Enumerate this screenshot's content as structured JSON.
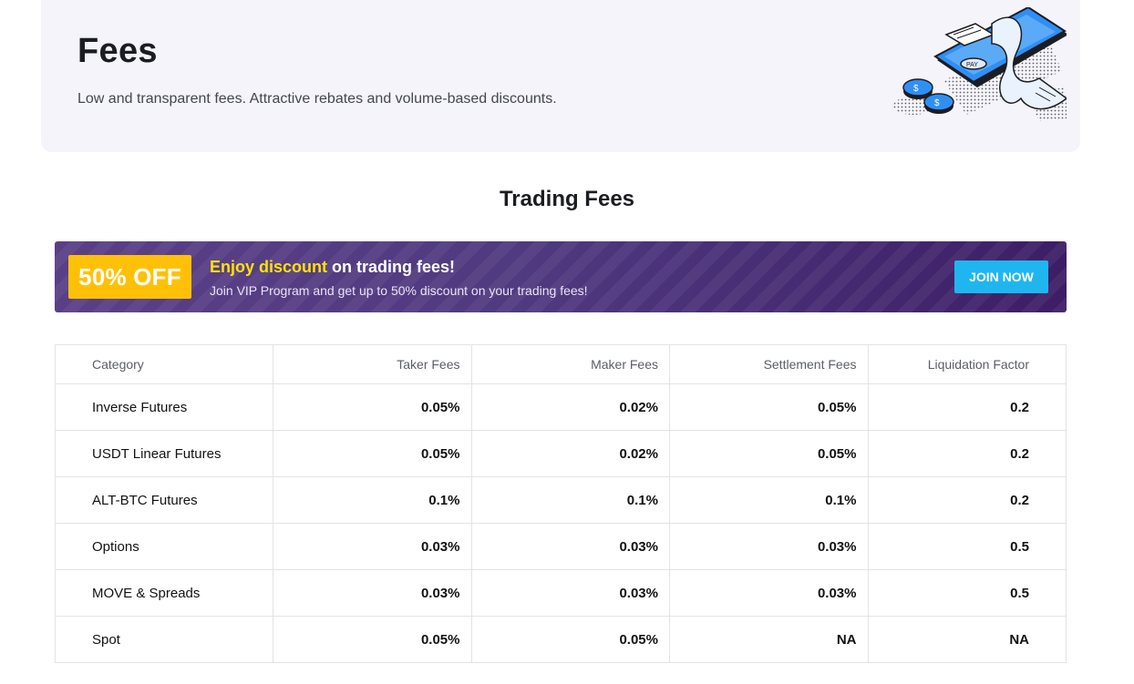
{
  "hero": {
    "title": "Fees",
    "subtitle": "Low and transparent fees. Attractive rebates and volume-based discounts.",
    "illustration_icon": "payment-phone-receipt-coins-illustration",
    "illustration_text": "PAY"
  },
  "section": {
    "title": "Trading Fees"
  },
  "promo": {
    "badge": "50% OFF",
    "heading_highlight": "Enjoy discount",
    "heading_rest": " on trading fees!",
    "text": "Join VIP Program and get up to 50% discount on your trading fees!",
    "button_label": "JOIN NOW",
    "colors": {
      "badge": "#ffc107",
      "highlight": "#ffe10a",
      "button": "#1fb6f0",
      "banner": "#503a80"
    }
  },
  "table": {
    "headers": [
      "Category",
      "Taker Fees",
      "Maker Fees",
      "Settlement Fees",
      "Liquidation Factor"
    ],
    "rows": [
      [
        "Inverse Futures",
        "0.05%",
        "0.02%",
        "0.05%",
        "0.2"
      ],
      [
        "USDT Linear Futures",
        "0.05%",
        "0.02%",
        "0.05%",
        "0.2"
      ],
      [
        "ALT-BTC Futures",
        "0.1%",
        "0.1%",
        "0.1%",
        "0.2"
      ],
      [
        "Options",
        "0.03%",
        "0.03%",
        "0.03%",
        "0.5"
      ],
      [
        "MOVE & Spreads",
        "0.03%",
        "0.03%",
        "0.03%",
        "0.5"
      ],
      [
        "Spot",
        "0.05%",
        "0.05%",
        "NA",
        "NA"
      ]
    ]
  }
}
